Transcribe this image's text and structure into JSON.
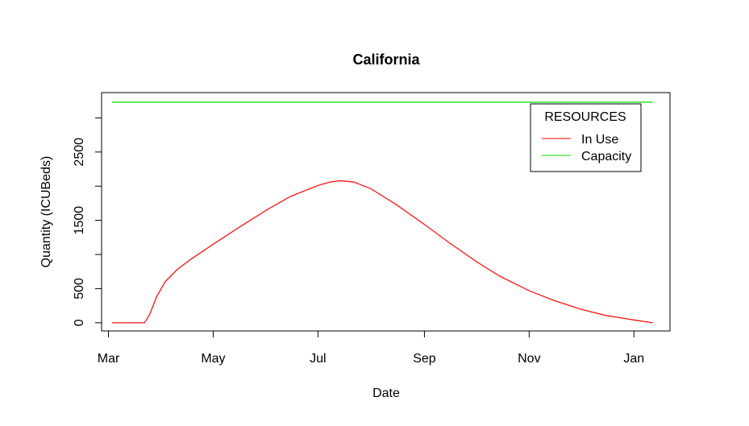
{
  "chart_data": {
    "type": "line",
    "title": "California",
    "xlabel": "Date",
    "ylabel": "Quantity (ICUBeds)",
    "x_ticks": [
      {
        "date": "2020-03-01",
        "label": "Mar"
      },
      {
        "date": "2020-05-01",
        "label": "May"
      },
      {
        "date": "2020-07-01",
        "label": "Jul"
      },
      {
        "date": "2020-09-01",
        "label": "Sep"
      },
      {
        "date": "2020-11-01",
        "label": "Nov"
      },
      {
        "date": "2021-01-01",
        "label": "Jan"
      }
    ],
    "y_ticks": [
      0,
      500,
      1000,
      1500,
      2000,
      2500,
      3000
    ],
    "y_tick_labels": [
      "0",
      "500",
      "",
      "1500",
      "",
      "2500",
      ""
    ],
    "xlim": [
      "2020-02-26",
      "2021-01-22"
    ],
    "ylim": [
      -120,
      3370
    ],
    "grid": false,
    "legend": {
      "title": "RESOURCES",
      "position": "top-right"
    },
    "series": [
      {
        "name": "In Use",
        "color": "#ff0000",
        "points": [
          {
            "x": "2020-03-03",
            "y": 0
          },
          {
            "x": "2020-03-22",
            "y": 0
          },
          {
            "x": "2020-03-25",
            "y": 120
          },
          {
            "x": "2020-03-29",
            "y": 380
          },
          {
            "x": "2020-04-03",
            "y": 600
          },
          {
            "x": "2020-04-10",
            "y": 780
          },
          {
            "x": "2020-04-18",
            "y": 930
          },
          {
            "x": "2020-05-01",
            "y": 1150
          },
          {
            "x": "2020-05-15",
            "y": 1380
          },
          {
            "x": "2020-06-01",
            "y": 1650
          },
          {
            "x": "2020-06-15",
            "y": 1850
          },
          {
            "x": "2020-07-01",
            "y": 2010
          },
          {
            "x": "2020-07-08",
            "y": 2060
          },
          {
            "x": "2020-07-14",
            "y": 2080
          },
          {
            "x": "2020-07-22",
            "y": 2060
          },
          {
            "x": "2020-08-01",
            "y": 1960
          },
          {
            "x": "2020-08-15",
            "y": 1740
          },
          {
            "x": "2020-09-01",
            "y": 1440
          },
          {
            "x": "2020-09-15",
            "y": 1180
          },
          {
            "x": "2020-10-01",
            "y": 900
          },
          {
            "x": "2020-10-15",
            "y": 680
          },
          {
            "x": "2020-11-01",
            "y": 470
          },
          {
            "x": "2020-11-15",
            "y": 330
          },
          {
            "x": "2020-12-01",
            "y": 200
          },
          {
            "x": "2020-12-15",
            "y": 110
          },
          {
            "x": "2021-01-01",
            "y": 40
          },
          {
            "x": "2021-01-12",
            "y": 0
          }
        ]
      },
      {
        "name": "Capacity",
        "color": "#00dd00",
        "points": [
          {
            "x": "2020-03-03",
            "y": 3230
          },
          {
            "x": "2021-01-12",
            "y": 3230
          }
        ]
      }
    ]
  }
}
